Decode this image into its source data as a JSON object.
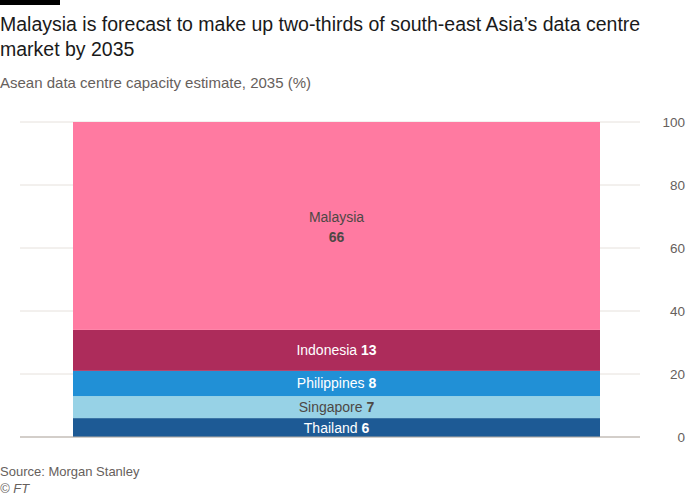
{
  "chart_data": {
    "type": "bar",
    "stacked": true,
    "title": "Malaysia is forecast to make up two-thirds of south-east Asia’s data centre market by 2035",
    "subtitle": "Asean data centre capacity estimate, 2035 (%)",
    "source": "Source: Morgan Stanley",
    "credit": "© FT",
    "categories": [
      null
    ],
    "series": [
      {
        "name": "Thailand",
        "color": "#1d5a95",
        "values": [
          6
        ]
      },
      {
        "name": "Singapore",
        "color": "#97d2e6",
        "values": [
          7
        ]
      },
      {
        "name": "Philippines",
        "color": "#2190d6",
        "values": [
          8
        ]
      },
      {
        "name": "Indonesia",
        "color": "#ad2c5b",
        "values": [
          13
        ]
      },
      {
        "name": "Malaysia",
        "color": "#ff7aa1",
        "values": [
          66
        ]
      }
    ],
    "ylim": [
      0,
      100
    ],
    "yticks": [
      0,
      20,
      40,
      60,
      80,
      100
    ],
    "grid": true,
    "data_labels": true
  }
}
